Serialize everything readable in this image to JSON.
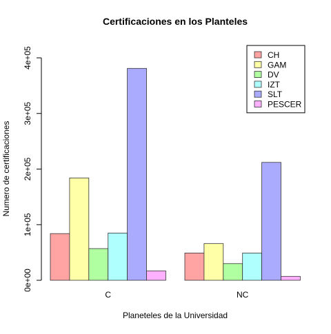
{
  "chart_data": {
    "type": "bar",
    "title": "Certificaciones en los Planteles",
    "xlabel": "Planeteles de la Universidad",
    "ylabel": "Numero de certificaciones",
    "categories": [
      "C",
      "NC"
    ],
    "series": [
      {
        "name": "CH",
        "color": "#FFA3A3",
        "values": [
          84000,
          49000
        ]
      },
      {
        "name": "GAM",
        "color": "#FFFFA8",
        "values": [
          184000,
          66000
        ]
      },
      {
        "name": "DV",
        "color": "#B0FFA0",
        "values": [
          57000,
          30000
        ]
      },
      {
        "name": "IZT",
        "color": "#B0FFFF",
        "values": [
          85000,
          49000
        ]
      },
      {
        "name": "SLT",
        "color": "#AAAAFF",
        "values": [
          381000,
          212000
        ]
      },
      {
        "name": "PESCER",
        "color": "#FFB0FF",
        "values": [
          17000,
          7000
        ]
      }
    ],
    "ylim": [
      0,
      400000
    ],
    "yticks": [
      0,
      100000,
      200000,
      300000,
      400000
    ],
    "ytick_labels": [
      "0e+00",
      "1e+05",
      "2e+05",
      "3e+05",
      "4e+05"
    ],
    "legend_position": "top-right",
    "grid": false
  }
}
